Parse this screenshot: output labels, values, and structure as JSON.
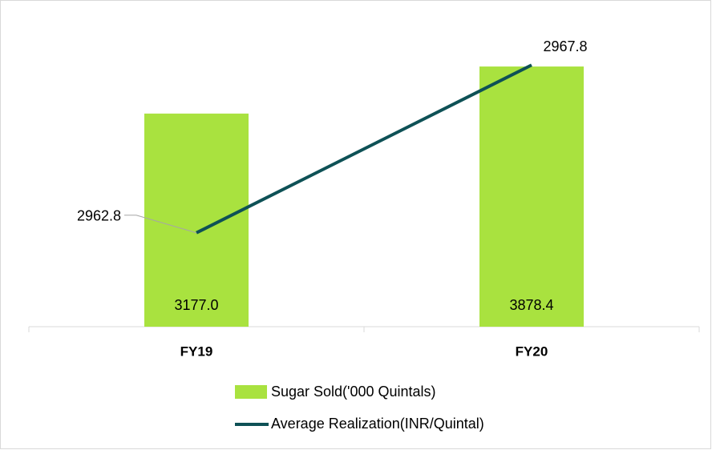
{
  "chart_data": {
    "type": "bar_line",
    "categories": [
      "FY19",
      "FY20"
    ],
    "series": [
      {
        "name": "Sugar Sold('000 Quintals)",
        "color": "#a9e23f",
        "type": "bar",
        "values": [
          3177.0,
          3878.4
        ],
        "value_labels": [
          "3177.0",
          "3878.4"
        ]
      },
      {
        "name": "Average Realization(INR/Quintal)",
        "color": "#0e5156",
        "type": "line",
        "axis": "y2",
        "values": [
          2962.8,
          2967.8
        ],
        "value_labels": [
          "2962.8",
          "2967.8"
        ]
      }
    ],
    "ylim": [
      0,
      4500
    ],
    "y2lim": [
      2960,
      2969
    ]
  }
}
